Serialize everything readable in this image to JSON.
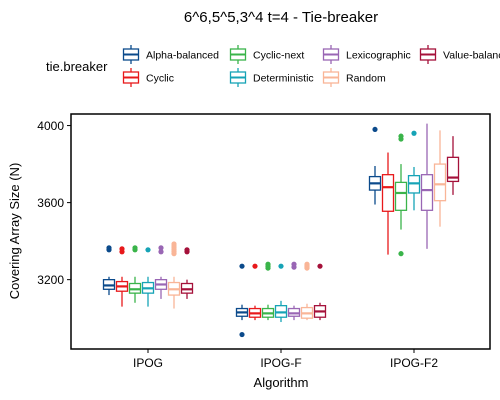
{
  "chart_data": {
    "type": "box",
    "title": "6^6,5^5,3^4 t=4 - Tie-breaker",
    "xlabel": "Algorithm",
    "ylabel": "Covering Array Size (N)",
    "ylim": [
      2840,
      4060
    ],
    "yticks": [
      3200,
      3600,
      4000
    ],
    "categories": [
      "IPOG",
      "IPOG-F",
      "IPOG-F2"
    ],
    "legend": {
      "title": "tie.breaker",
      "placement": "top",
      "entries": [
        "Alpha-balanced",
        "Cyclic-next",
        "Lexicographic",
        "Value-balance",
        "Cyclic",
        "Deterministic",
        "Random"
      ]
    },
    "series": [
      {
        "name": "Alpha-balanced",
        "color": "#0b4a8b",
        "boxes": [
          {
            "whislo": 3120,
            "q1": 3150,
            "med": 3170,
            "q3": 3200,
            "whishi": 3215,
            "outliers": [
              3355,
              3365
            ]
          },
          {
            "whislo": 2990,
            "q1": 3010,
            "med": 3030,
            "q3": 3050,
            "whishi": 3070,
            "outliers": [
              2915,
              3270
            ]
          },
          {
            "whislo": 3590,
            "q1": 3665,
            "med": 3700,
            "q3": 3735,
            "whishi": 3790,
            "outliers": [
              3980
            ]
          }
        ]
      },
      {
        "name": "Cyclic",
        "color": "#e8191b",
        "boxes": [
          {
            "whislo": 3060,
            "q1": 3140,
            "med": 3165,
            "q3": 3190,
            "whishi": 3215,
            "outliers": [
              3345,
              3360
            ]
          },
          {
            "whislo": 2990,
            "q1": 3005,
            "med": 3025,
            "q3": 3050,
            "whishi": 3065,
            "outliers": [
              3270
            ]
          },
          {
            "whislo": 3330,
            "q1": 3555,
            "med": 3680,
            "q3": 3745,
            "whishi": 3860,
            "outliers": []
          }
        ]
      },
      {
        "name": "Cyclic-next",
        "color": "#3ab44a",
        "boxes": [
          {
            "whislo": 3080,
            "q1": 3130,
            "med": 3150,
            "q3": 3180,
            "whishi": 3215,
            "outliers": [
              3355,
              3365
            ]
          },
          {
            "whislo": 2990,
            "q1": 3005,
            "med": 3025,
            "q3": 3050,
            "whishi": 3070,
            "outliers": [
              3260,
              3270,
              3280
            ]
          },
          {
            "whislo": 3460,
            "q1": 3560,
            "med": 3650,
            "q3": 3705,
            "whishi": 3800,
            "outliers": [
              3335,
              3930,
              3945
            ]
          }
        ]
      },
      {
        "name": "Deterministic",
        "color": "#16a3b6",
        "boxes": [
          {
            "whislo": 3060,
            "q1": 3130,
            "med": 3155,
            "q3": 3185,
            "whishi": 3215,
            "outliers": [
              3355
            ]
          },
          {
            "whislo": 2980,
            "q1": 3005,
            "med": 3030,
            "q3": 3065,
            "whishi": 3090,
            "outliers": [
              3270
            ]
          },
          {
            "whislo": 3560,
            "q1": 3650,
            "med": 3700,
            "q3": 3740,
            "whishi": 3785,
            "outliers": [
              3960
            ]
          }
        ]
      },
      {
        "name": "Lexicographic",
        "color": "#9966b4",
        "boxes": [
          {
            "whislo": 3100,
            "q1": 3150,
            "med": 3175,
            "q3": 3200,
            "whishi": 3215,
            "outliers": [
              3345,
              3365
            ]
          },
          {
            "whislo": 2990,
            "q1": 3010,
            "med": 3025,
            "q3": 3050,
            "whishi": 3065,
            "outliers": [
              3265,
              3280
            ]
          },
          {
            "whislo": 3360,
            "q1": 3560,
            "med": 3665,
            "q3": 3745,
            "whishi": 4010,
            "outliers": []
          }
        ]
      },
      {
        "name": "Random",
        "color": "#f9b597",
        "boxes": [
          {
            "whislo": 3050,
            "q1": 3120,
            "med": 3150,
            "q3": 3185,
            "whishi": 3215,
            "outliers": [
              3335,
              3345,
              3355,
              3365,
              3375,
              3385
            ]
          },
          {
            "whislo": 2990,
            "q1": 3000,
            "med": 3025,
            "q3": 3055,
            "whishi": 3075,
            "outliers": [
              3260,
              3265,
              3270,
              3275,
              3280
            ]
          },
          {
            "whislo": 3475,
            "q1": 3610,
            "med": 3695,
            "q3": 3800,
            "whishi": 3975,
            "outliers": []
          }
        ]
      },
      {
        "name": "Value-balance",
        "color": "#a5113a",
        "boxes": [
          {
            "whislo": 3100,
            "q1": 3130,
            "med": 3150,
            "q3": 3180,
            "whishi": 3200,
            "outliers": [
              3345,
              3355
            ]
          },
          {
            "whislo": 2990,
            "q1": 3005,
            "med": 3035,
            "q3": 3065,
            "whishi": 3080,
            "outliers": [
              3270
            ]
          },
          {
            "whislo": 3640,
            "q1": 3710,
            "med": 3730,
            "q3": 3835,
            "whishi": 3945,
            "outliers": []
          }
        ]
      }
    ]
  }
}
